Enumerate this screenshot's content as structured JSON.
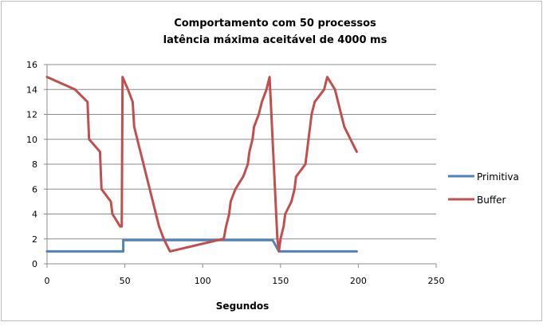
{
  "chart_data": {
    "type": "line",
    "title_lines": [
      "Comportamento com 50 processos",
      "latência máxima aceitável de 4000 ms"
    ],
    "xlabel": "Segundos",
    "ylabel": "",
    "xlim": [
      0,
      250
    ],
    "ylim": [
      0,
      16
    ],
    "x_ticks": [
      0,
      50,
      100,
      150,
      200,
      250
    ],
    "y_ticks": [
      0,
      2,
      4,
      6,
      8,
      10,
      12,
      14,
      16
    ],
    "grid": "horizontal",
    "legend": "right",
    "series": [
      {
        "name": "Primitiva",
        "color": "#4f81bd",
        "points": [
          [
            0,
            1
          ],
          [
            49,
            1
          ],
          [
            49,
            1.9
          ],
          [
            145,
            1.9
          ],
          [
            149,
            1
          ],
          [
            199,
            1
          ]
        ]
      },
      {
        "name": "Buffer",
        "color": "#c0504d",
        "points": [
          [
            0,
            15
          ],
          [
            18,
            14
          ],
          [
            26,
            13
          ],
          [
            27,
            10
          ],
          [
            34,
            9
          ],
          [
            35,
            6
          ],
          [
            41,
            5
          ],
          [
            42,
            4
          ],
          [
            47,
            3
          ],
          [
            48,
            3
          ],
          [
            48.5,
            15
          ],
          [
            52,
            14
          ],
          [
            55,
            13
          ],
          [
            56,
            11
          ],
          [
            58,
            10
          ],
          [
            60,
            9
          ],
          [
            62,
            8
          ],
          [
            64,
            7
          ],
          [
            66,
            6
          ],
          [
            68,
            5
          ],
          [
            70,
            4
          ],
          [
            72,
            3
          ],
          [
            75,
            2
          ],
          [
            79,
            1
          ],
          [
            113,
            2
          ],
          [
            113.5,
            2
          ],
          [
            115,
            3
          ],
          [
            117,
            4
          ],
          [
            118,
            5
          ],
          [
            121,
            6
          ],
          [
            126,
            7
          ],
          [
            129,
            8
          ],
          [
            130,
            9
          ],
          [
            132,
            10
          ],
          [
            133,
            11
          ],
          [
            136,
            12
          ],
          [
            138,
            13
          ],
          [
            141,
            14
          ],
          [
            143,
            15
          ],
          [
            148,
            2
          ],
          [
            149,
            1
          ],
          [
            150,
            2
          ],
          [
            152,
            3
          ],
          [
            153,
            4
          ],
          [
            157,
            5
          ],
          [
            159,
            6
          ],
          [
            160,
            7
          ],
          [
            166,
            8
          ],
          [
            167,
            9
          ],
          [
            168,
            10
          ],
          [
            169,
            11
          ],
          [
            170,
            12
          ],
          [
            172,
            13
          ],
          [
            178,
            14
          ],
          [
            180,
            15
          ],
          [
            185,
            14
          ],
          [
            187,
            13
          ],
          [
            189,
            12
          ],
          [
            191,
            11
          ],
          [
            195,
            10
          ],
          [
            199,
            9
          ]
        ]
      }
    ]
  }
}
